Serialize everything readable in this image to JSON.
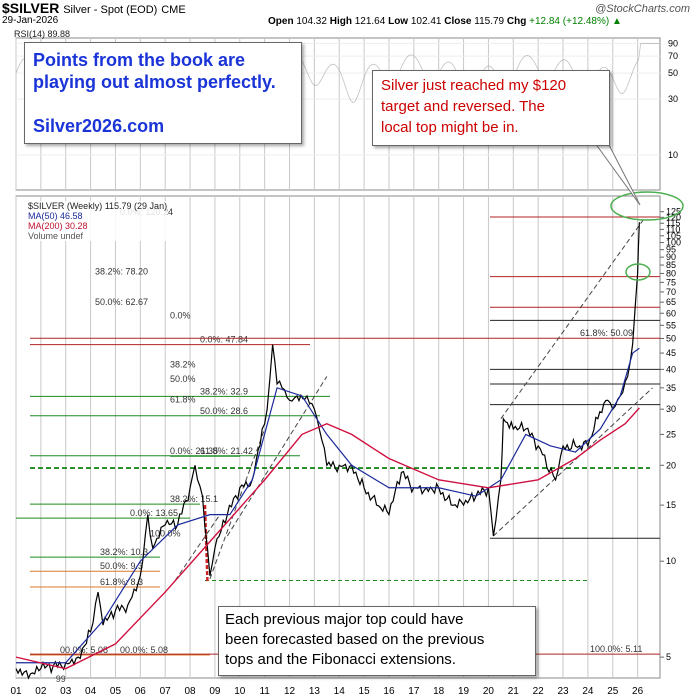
{
  "header": {
    "symbol": "$SILVER",
    "subtitle": "Silver - Spot (EOD)",
    "exchange": "CME",
    "date": "29-Jan-2026",
    "open_label": "Open",
    "open": "104.32",
    "high_label": "High",
    "high": "121.64",
    "low_label": "Low",
    "low": "102.41",
    "close_label": "Close",
    "close": "115.79",
    "chg_label": "Chg",
    "chg": "+12.84 (+12.48%)",
    "chg_arrow": "▲",
    "brand": "@StockCharts.com"
  },
  "rsi": {
    "label": "RSI(14) 89.88"
  },
  "legend": {
    "price": "$SILVER (Weekly) 115.79 (29 Jan)",
    "ma50": "MA(50) 46.58",
    "ma200": "MA(200) 30.28",
    "volume": "Volume undef"
  },
  "notes": {
    "book_line1": "Points from the book are",
    "book_line2": "playing out almost perfectly.",
    "site": "Silver2026.com",
    "target_line1": "Silver just reached my $120",
    "target_line2": "target and reversed. The",
    "target_line3": "local top might be in.",
    "forecast_line1": "Each previous major top could have",
    "forecast_line2": "been forecasted based on the previous",
    "forecast_line3": "tops and the Fibonacci extensions."
  },
  "colors": {
    "price": "#000000",
    "ma50": "#1b2a9b",
    "ma200": "#d01040",
    "fib_red": "#b22222",
    "fib_green": "#1e8a1e",
    "fib_orange": "#d87a2a",
    "support_green": "#1e8a1e",
    "grid": "#c8c8c8"
  },
  "chart_data": {
    "type": "line",
    "scale": "log",
    "title": "$SILVER Silver - Spot (EOD)",
    "ylim": [
      4.3,
      140
    ],
    "xlim": [
      2001.0,
      2026.9
    ],
    "x_ticks": [
      "01",
      "02",
      "03",
      "04",
      "05",
      "06",
      "07",
      "08",
      "09",
      "10",
      "11",
      "12",
      "13",
      "14",
      "15",
      "16",
      "17",
      "18",
      "19",
      "20",
      "21",
      "22",
      "23",
      "24",
      "25",
      "26"
    ],
    "y_ticks": [
      5,
      10,
      15,
      20,
      25,
      30,
      35,
      40,
      45,
      50,
      55,
      60,
      65,
      70,
      75,
      80,
      85,
      90,
      95,
      100,
      105,
      110,
      115,
      120,
      125
    ],
    "upper_panel_ticks": [
      10,
      30,
      50,
      70,
      90
    ],
    "series": [
      {
        "name": "$SILVER (Weekly)",
        "x": [
          2001.0,
          2001.5,
          2002.0,
          2002.5,
          2003.0,
          2003.5,
          2004.0,
          2004.3,
          2004.5,
          2005.0,
          2005.5,
          2006.0,
          2006.3,
          2006.5,
          2007.0,
          2007.5,
          2008.0,
          2008.2,
          2008.5,
          2008.8,
          2009.0,
          2009.5,
          2010.0,
          2010.5,
          2010.9,
          2011.1,
          2011.32,
          2011.5,
          2011.7,
          2012.0,
          2012.3,
          2012.7,
          2013.0,
          2013.3,
          2013.5,
          2014.0,
          2014.5,
          2015.0,
          2015.5,
          2016.0,
          2016.5,
          2017.0,
          2017.5,
          2018.0,
          2018.5,
          2019.0,
          2019.5,
          2020.0,
          2020.2,
          2020.5,
          2020.6,
          2021.0,
          2021.5,
          2022.0,
          2022.7,
          2023.0,
          2023.5,
          2024.0,
          2024.4,
          2024.8,
          2025.0,
          2025.3,
          2025.6,
          2025.8,
          2026.0,
          2026.07
        ],
        "values": [
          4.6,
          4.3,
          4.6,
          4.7,
          4.8,
          5.0,
          6.0,
          8.0,
          6.3,
          7.0,
          7.3,
          9.0,
          14.0,
          11.0,
          13.0,
          13.0,
          17.0,
          20.0,
          16.0,
          9.0,
          11.0,
          14.0,
          17.0,
          18.0,
          26.0,
          30.0,
          47.84,
          36.0,
          35.0,
          32.0,
          33.0,
          33.0,
          30.0,
          24.0,
          20.0,
          20.0,
          20.0,
          17.0,
          15.0,
          14.0,
          19.0,
          17.0,
          17.0,
          17.0,
          15.0,
          15.0,
          16.0,
          17.0,
          12.0,
          18.0,
          28.0,
          26.0,
          26.0,
          23.0,
          18.0,
          23.0,
          23.0,
          23.0,
          28.0,
          32.0,
          30.0,
          33.0,
          38.0,
          48.0,
          80.0,
          115.79
        ]
      },
      {
        "name": "MA(50)",
        "x": [
          2001.0,
          2003.0,
          2004.5,
          2006.0,
          2007.5,
          2008.8,
          2009.6,
          2010.5,
          2011.5,
          2012.5,
          2013.5,
          2014.5,
          2016.0,
          2018.0,
          2019.5,
          2020.5,
          2021.5,
          2022.5,
          2023.5,
          2024.5,
          2025.3,
          2025.8,
          2026.07
        ],
        "values": [
          4.8,
          4.8,
          6.5,
          10.0,
          13.0,
          14.0,
          14.0,
          18.0,
          35.0,
          33.0,
          25.0,
          20.0,
          17.0,
          17.0,
          16.0,
          18.0,
          25.0,
          23.0,
          22.0,
          26.0,
          33.0,
          45.0,
          46.58
        ]
      },
      {
        "name": "MA(200)",
        "x": [
          2001.0,
          2003.0,
          2005.0,
          2007.0,
          2009.0,
          2011.0,
          2012.5,
          2013.5,
          2014.5,
          2016.0,
          2018.0,
          2020.0,
          2022.0,
          2023.5,
          2024.5,
          2025.5,
          2026.07
        ],
        "values": [
          5.0,
          4.6,
          5.5,
          8.0,
          12.0,
          18.0,
          25.0,
          27.0,
          25.0,
          21.0,
          18.0,
          17.0,
          18.0,
          21.0,
          24.0,
          27.0,
          30.28
        ]
      }
    ],
    "fib_levels": [
      {
        "label": "0.0%: 21.35",
        "value": 21.35
      },
      {
        "label": "0.0%: 13.65",
        "value": 13.65
      },
      {
        "label": "0.0%: 47.84",
        "value": 47.84
      },
      {
        "label": "0.0%: 120.24",
        "value": 120.24
      },
      {
        "label": "38.2%: 15.1",
        "value": 15.1
      },
      {
        "label": "38.2%: 10.3",
        "value": 10.3
      },
      {
        "label": "38.2%: 32.9",
        "value": 32.9
      },
      {
        "label": "38.2%: 78.20",
        "value": 78.2
      },
      {
        "label": "38.2%",
        "value": 40.0
      },
      {
        "label": "50.0%: 9.3",
        "value": 9.3
      },
      {
        "label": "50.0%: 28.6",
        "value": 28.6
      },
      {
        "label": "50.0%: 62.67",
        "value": 62.67
      },
      {
        "label": "50.0%",
        "value": 36.0
      },
      {
        "label": "61.8%: 8.3",
        "value": 8.3
      },
      {
        "label": "61.8%: 21.42",
        "value": 21.42
      },
      {
        "label": "61.8%: 50.09",
        "value": 50.09
      },
      {
        "label": "61.8%",
        "value": 31.0
      },
      {
        "label": "0.0%",
        "value": 57.0
      },
      {
        "label": "00.0%: 5.08",
        "value": 5.08
      },
      {
        "label": "00.0%: 5.08",
        "value": 5.08
      },
      {
        "label": "100.0%",
        "value": 11.8
      },
      {
        "label": "100.0%: 5.11",
        "value": 5.11
      }
    ],
    "annotations": [
      "99"
    ]
  }
}
